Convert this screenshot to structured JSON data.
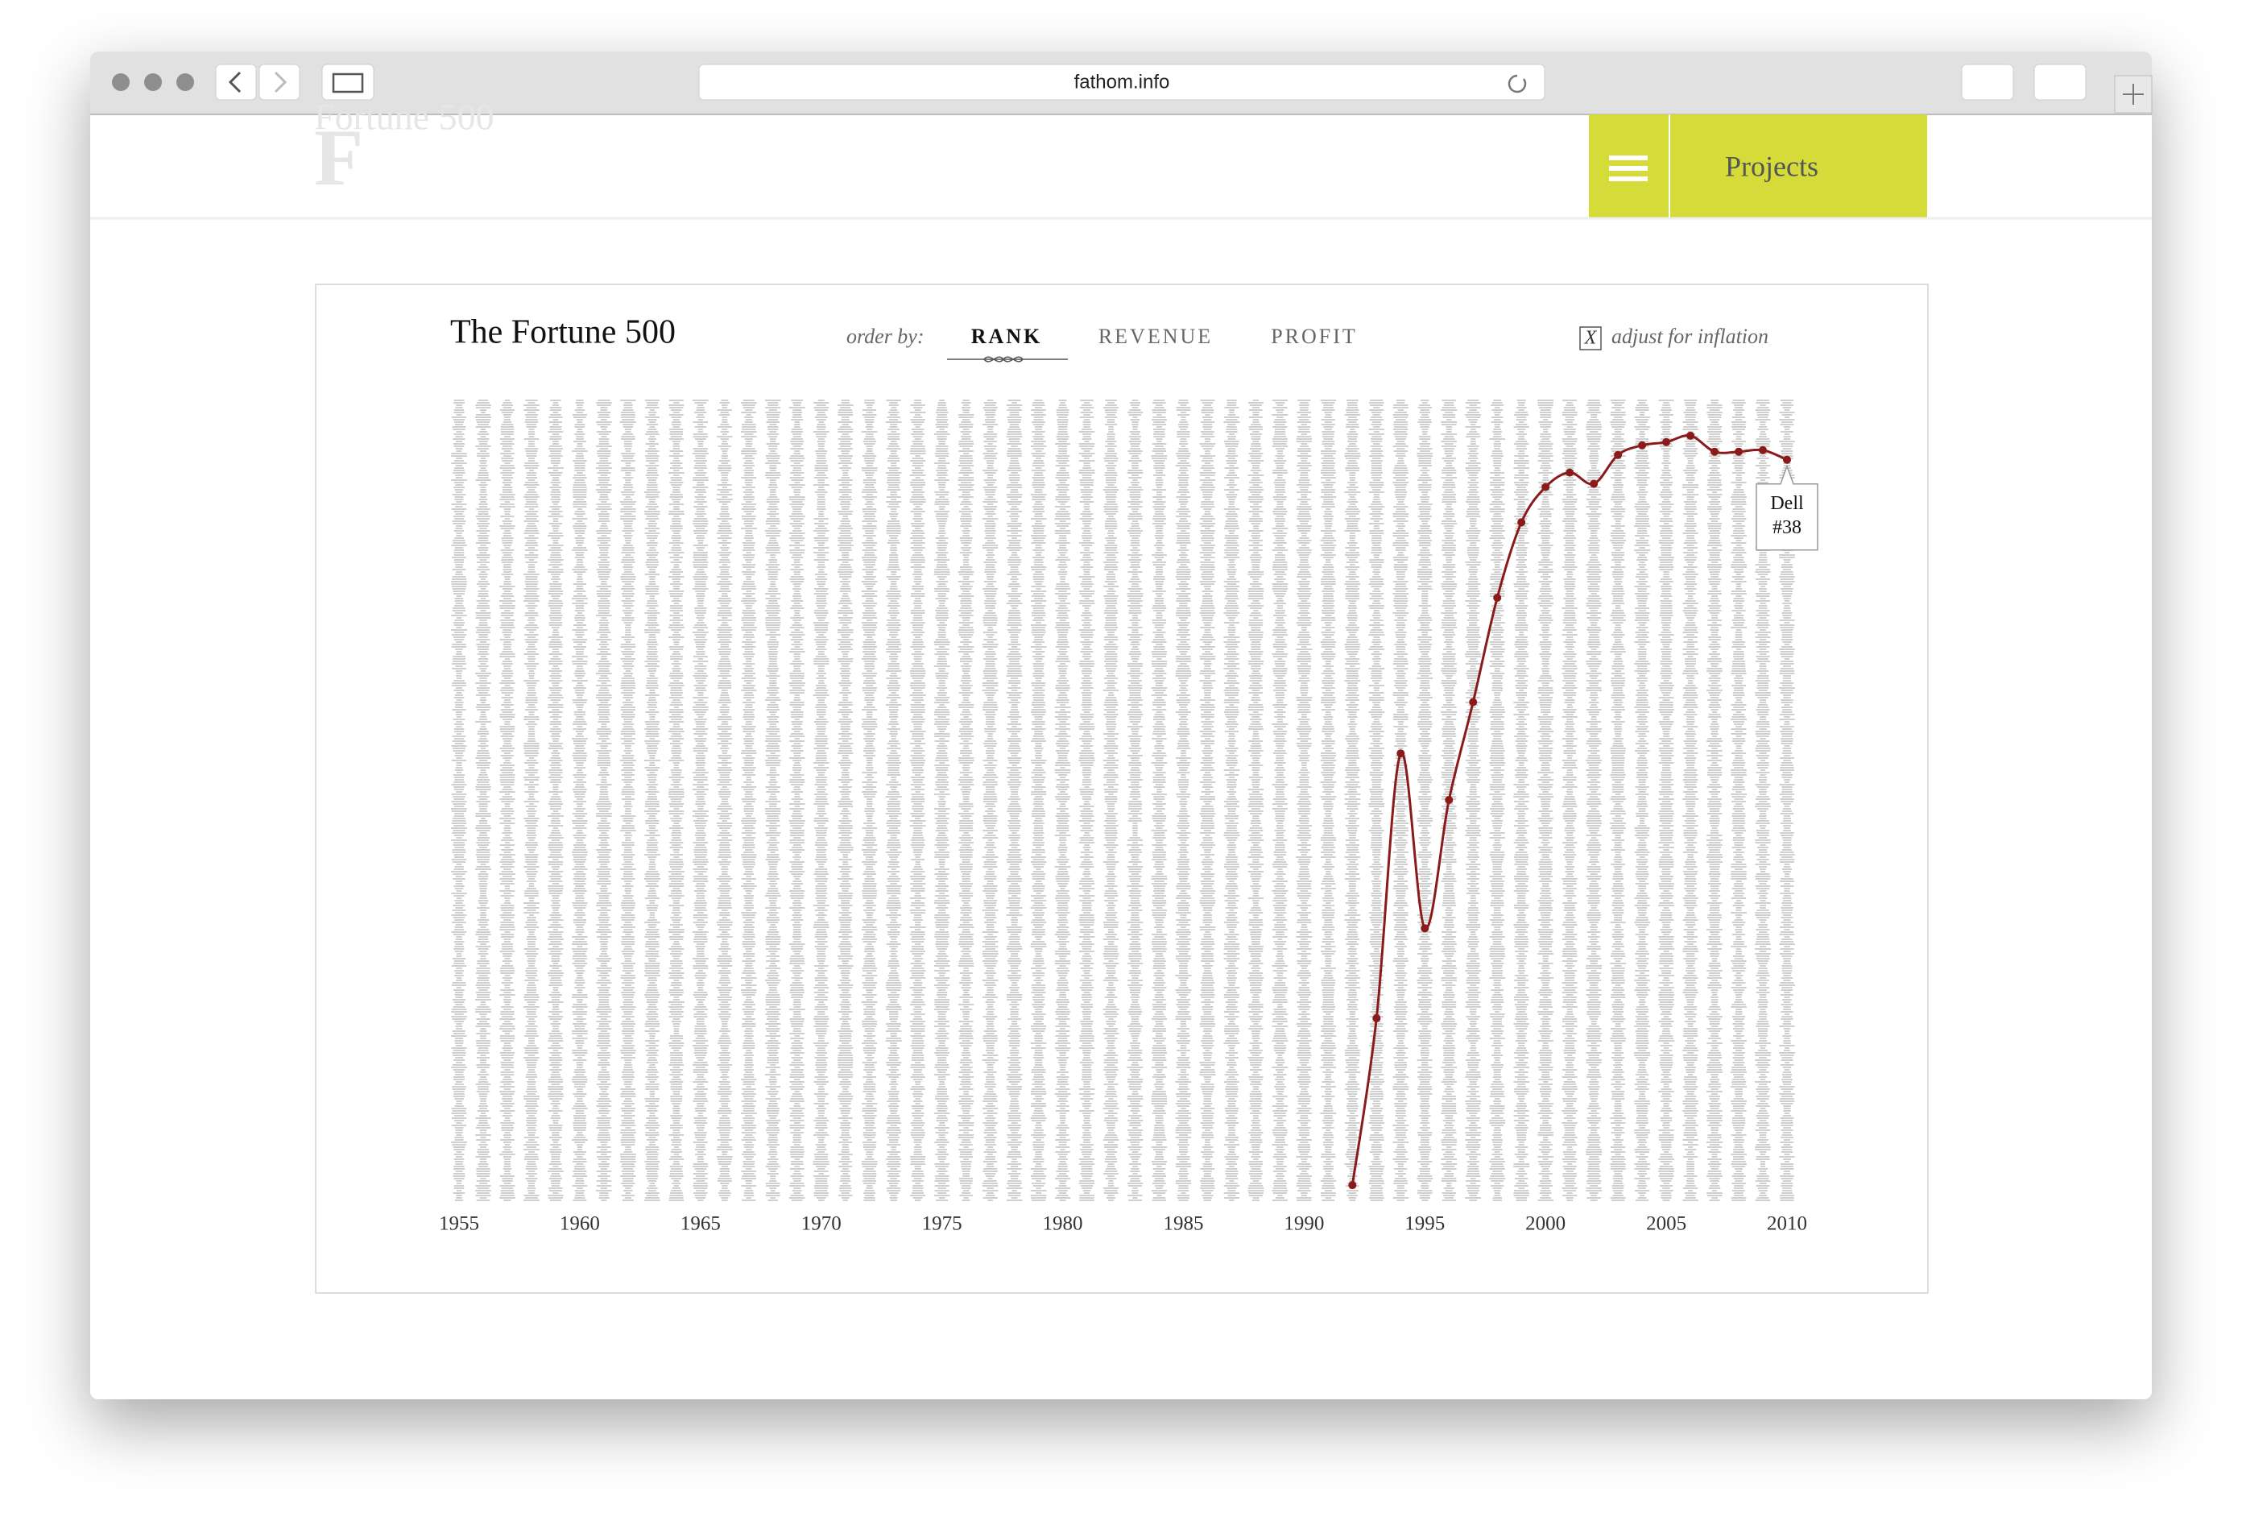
{
  "browser": {
    "url": "fathom.info"
  },
  "site": {
    "logo_mark": "F",
    "logo_text": "Fortune 500",
    "menu": "Projects"
  },
  "chart_data": {
    "type": "line",
    "title": "The Fortune 500",
    "order_by_label": "order by:",
    "order_options": [
      "RANK",
      "REVENUE",
      "PROFIT"
    ],
    "inflation_checkbox": "X",
    "inflation_label": "adjust for inflation",
    "xlim": [
      1955,
      2010
    ],
    "xticks": [
      1955,
      1960,
      1965,
      1970,
      1975,
      1980,
      1985,
      1990,
      1995,
      2000,
      2005,
      2010
    ],
    "ylim": [
      500,
      1
    ],
    "x": [
      1992,
      1993,
      1994,
      1995,
      1996,
      1997,
      1998,
      1999,
      2000,
      2001,
      2002,
      2003,
      2004,
      2005,
      2006,
      2007,
      2008,
      2009,
      2010
    ],
    "series": [
      {
        "name": "Dell",
        "color": "#8b1a1a",
        "values": [
          490,
          386,
          221,
          330,
          250,
          189,
          124,
          77,
          55,
          46,
          53,
          35,
          29,
          27,
          23,
          33,
          33,
          32,
          38
        ],
        "value_labels": [
          null,
          null,
          null,
          null,
          null,
          null,
          null,
          null,
          null,
          null,
          null,
          null,
          null,
          null,
          null,
          null,
          null,
          null,
          "#38"
        ]
      }
    ]
  }
}
